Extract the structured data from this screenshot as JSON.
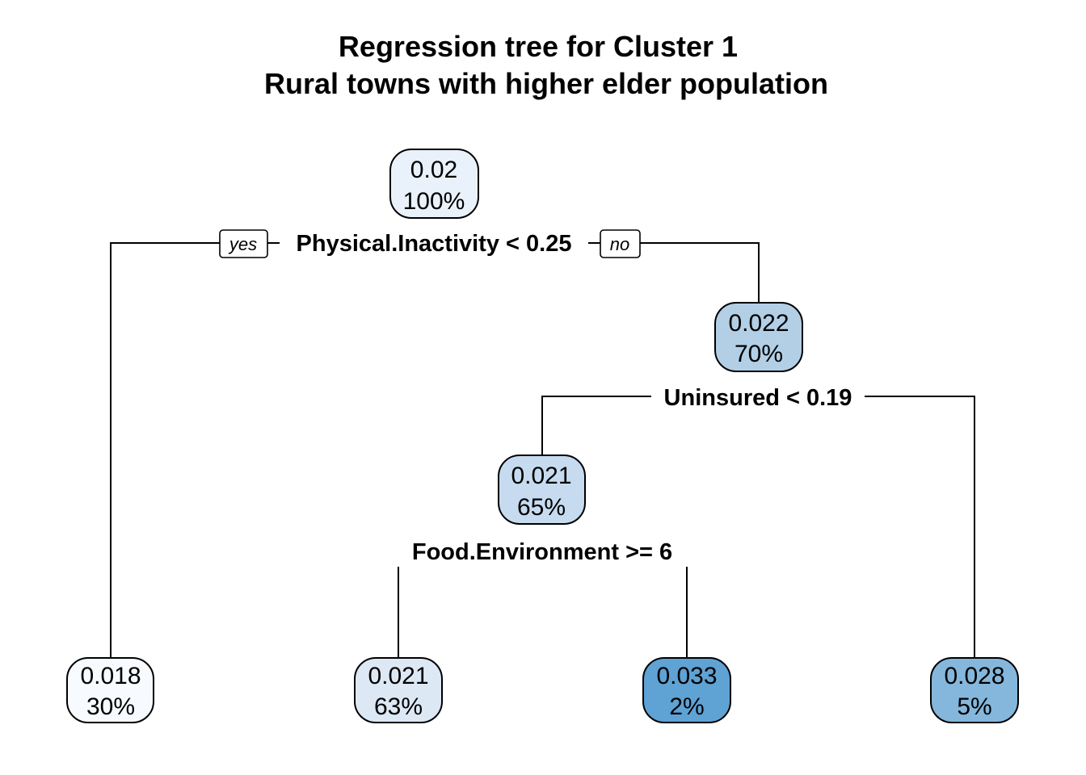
{
  "title": {
    "line1": "Regression tree for Cluster 1",
    "line2": "Rural towns with higher elder population"
  },
  "colors": {
    "node_fills": [
      "#e9f1fa",
      "#b2cfe6",
      "#c6dbef",
      "#f7fbff",
      "#dde8f5",
      "#5fa2d4",
      "#84b7db"
    ]
  },
  "branch_labels": {
    "yes": "yes",
    "no": "no"
  },
  "nodes": [
    {
      "id": "root",
      "value": "0.02",
      "percent": "100%"
    },
    {
      "id": "n2",
      "value": "0.022",
      "percent": "70%"
    },
    {
      "id": "n3",
      "value": "0.021",
      "percent": "65%"
    },
    {
      "id": "leaf1",
      "value": "0.018",
      "percent": "30%"
    },
    {
      "id": "leaf2",
      "value": "0.021",
      "percent": "63%"
    },
    {
      "id": "leaf3",
      "value": "0.033",
      "percent": "2%"
    },
    {
      "id": "leaf4",
      "value": "0.028",
      "percent": "5%"
    }
  ],
  "splits": [
    {
      "id": "s1",
      "label": "Physical.Inactivity < 0.25"
    },
    {
      "id": "s2",
      "label": "Uninsured < 0.19"
    },
    {
      "id": "s3",
      "label": "Food.Environment >= 6"
    }
  ]
}
